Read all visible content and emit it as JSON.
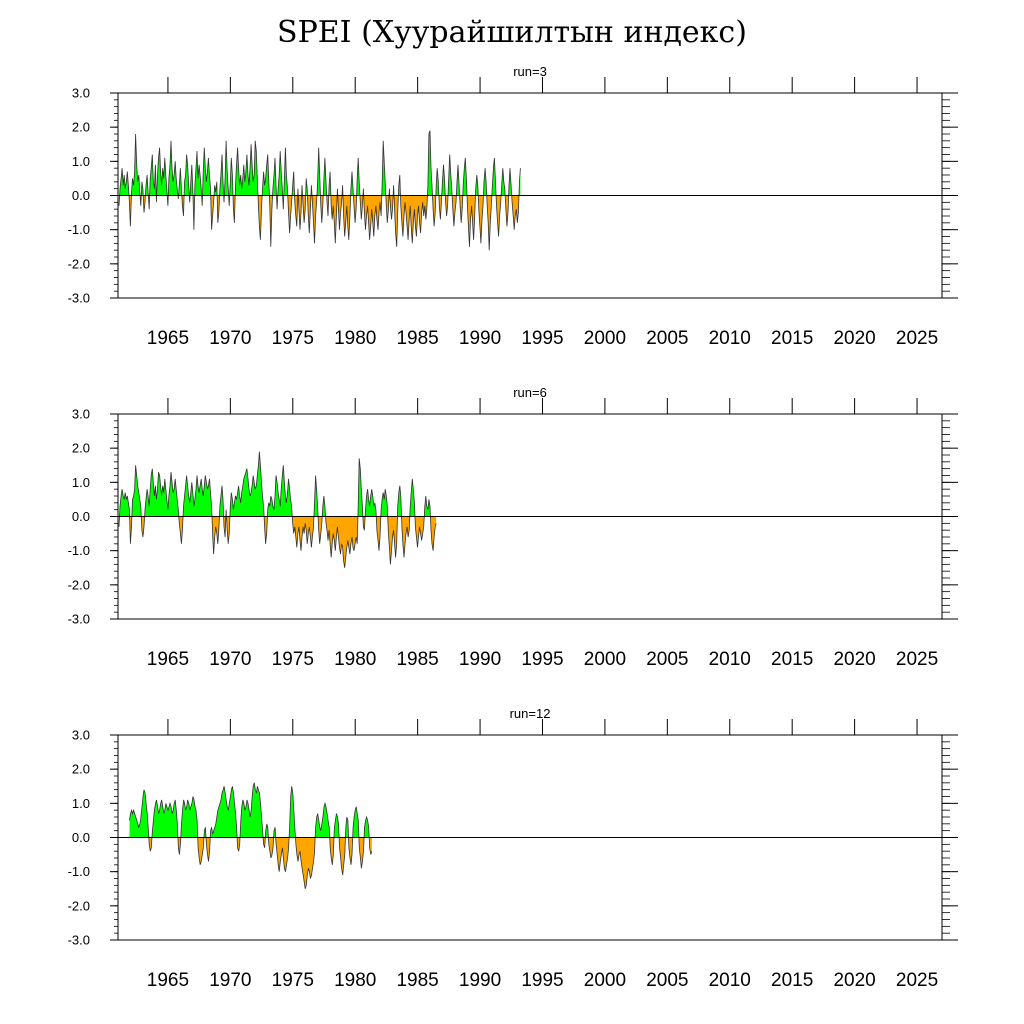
{
  "figure": {
    "title": "SPEI (Хуурайшилтын индекс)"
  },
  "colors": {
    "positive": "#00ff00",
    "negative": "#ffa500",
    "line": "#000000",
    "frame": "#000000"
  },
  "chart_data": [
    {
      "type": "area",
      "title": "run=3",
      "ylim": [
        -3.0,
        3.0
      ],
      "yticks": [
        "-3.0",
        "-2.0",
        "-1.0",
        "0.0",
        "1.0",
        "2.0",
        "3.0"
      ],
      "xlim": [
        1961.0,
        2027.0
      ],
      "xticks": [
        "1965",
        "1970",
        "1975",
        "1980",
        "1985",
        "1990",
        "1995",
        "2000",
        "2005",
        "2010",
        "2015",
        "2020",
        "2025"
      ],
      "start": 1961.08,
      "step": 0.0833,
      "values": [
        -0.3,
        0.2,
        0.5,
        0.8,
        0.3,
        0.6,
        0.2,
        0.4,
        0.7,
        0.3,
        -0.2,
        -0.9,
        0.1,
        0.5,
        0.3,
        0.7,
        1.8,
        0.9,
        0.4,
        0.6,
        0.1,
        -0.3,
        0.4,
        0.2,
        -0.5,
        -0.2,
        0.3,
        0.6,
        0.1,
        -0.4,
        0.5,
        0.8,
        1.2,
        0.4,
        0.2,
        0.9,
        -0.2,
        0.6,
        1.1,
        1.4,
        0.7,
        0.3,
        0.8,
        0.5,
        1.1,
        0.6,
        0.2,
        -0.3,
        0.5,
        0.9,
        1.6,
        0.8,
        0.4,
        0.6,
        1.0,
        0.5,
        0.2,
        -0.1,
        0.3,
        0.8,
        0.2,
        -0.3,
        -0.6,
        0.4,
        0.6,
        1.2,
        0.9,
        0.3,
        -0.2,
        0.4,
        0.9,
        0.2,
        -1.0,
        0.3,
        0.8,
        1.3,
        0.5,
        0.9,
        0.6,
        0.2,
        -0.3,
        0.7,
        1.4,
        0.8,
        0.4,
        0.7,
        1.1,
        0.6,
        0.2,
        -1.0,
        -0.6,
        -0.2,
        0.3,
        0.1,
        0.4,
        -0.8,
        -0.5,
        0.2,
        0.6,
        1.2,
        0.4,
        -0.2,
        0.5,
        1.6,
        0.7,
        0.2,
        -0.3,
        0.4,
        1.1,
        0.6,
        -0.4,
        -0.8,
        0.3,
        0.9,
        1.4,
        0.8,
        0.3,
        0.6,
        0.2,
        0.5,
        0.9,
        0.4,
        0.7,
        1.2,
        0.6,
        0.3,
        0.8,
        1.5,
        0.9,
        0.4,
        0.6,
        1.6,
        1.3,
        0.5,
        -0.3,
        -0.9,
        -1.3,
        -0.4,
        0.2,
        0.7,
        0.3,
        0.5,
        0.9,
        1.2,
        0.4,
        -0.3,
        -1.5,
        -0.4,
        0.2,
        0.6,
        1.1,
        0.3,
        -0.4,
        0.2,
        0.6,
        1.3,
        0.7,
        0.2,
        -0.4,
        0.5,
        1.4,
        0.6,
        0.2,
        -0.5,
        -1.1,
        -0.6,
        -0.2,
        0.3,
        0.7,
        -0.2,
        -0.6,
        -0.9,
        0.2,
        -0.4,
        -1.0,
        -0.5,
        0.3,
        -0.3,
        -0.8,
        -0.4,
        0.5,
        0.2,
        -0.6,
        -1.1,
        -0.4,
        0.3,
        -0.2,
        -0.8,
        -1.4,
        -0.6,
        -0.2,
        0.4,
        1.4,
        0.6,
        -0.3,
        -0.8,
        -0.3,
        0.5,
        1.1,
        0.4,
        -0.2,
        -0.6,
        0.3,
        0.7,
        -0.3,
        -0.7,
        -0.3,
        -0.8,
        -1.4,
        -0.6,
        0.2,
        -0.4,
        -1.0,
        -0.5,
        -0.2,
        0.3,
        -0.6,
        -1.2,
        -0.8,
        -0.3,
        -0.9,
        -1.3,
        -0.6,
        0.2,
        0.7,
        0.2,
        -0.3,
        -0.8,
        -0.4,
        0.5,
        1.1,
        0.4,
        -0.2,
        -0.7,
        -0.3,
        0.2,
        -0.5,
        -1.0,
        -0.6,
        -0.3,
        -0.8,
        -1.3,
        -0.9,
        -0.4,
        -0.8,
        -1.2,
        -0.6,
        -0.3,
        -0.7,
        -1.0,
        -0.5,
        -0.2,
        -0.6,
        0.3,
        1.6,
        1.0,
        0.4,
        -0.3,
        -0.8,
        -0.4,
        0.2,
        -0.3,
        -0.7,
        -0.4,
        0.3,
        -0.4,
        -1.1,
        -1.5,
        -0.5,
        0.3,
        0.6,
        -0.3,
        -0.8,
        -1.2,
        -0.6,
        -0.2,
        -0.5,
        -0.9,
        -1.3,
        -0.7,
        -0.3,
        -0.9,
        -1.4,
        -0.8,
        -0.4,
        -0.9,
        -1.2,
        -0.6,
        -0.3,
        -0.8,
        -1.1,
        -0.5,
        -0.2,
        -0.6,
        -0.3,
        -0.7,
        -0.4,
        0.3,
        1.8,
        1.9,
        0.8,
        0.3,
        -0.4,
        -0.9,
        -0.5,
        0.3,
        0.8,
        0.4,
        -0.3,
        -0.7,
        -0.2,
        0.4,
        0.9,
        0.5,
        -0.2,
        -0.6,
        -0.3,
        0.5,
        1.2,
        0.6,
        0.2,
        -0.4,
        -0.9,
        -0.5,
        -0.2,
        0.4,
        0.9,
        0.3,
        -0.3,
        -0.8,
        -0.4,
        0.3,
        0.8,
        1.1,
        0.5,
        -0.3,
        -0.9,
        -1.5,
        -0.7,
        -0.3,
        -0.8,
        -1.3,
        -0.6,
        0.2,
        0.6,
        0.3,
        -0.4,
        -0.9,
        -1.4,
        -0.7,
        -0.3,
        0.4,
        0.8,
        0.4,
        -0.3,
        -0.8,
        -1.6,
        -0.8,
        -0.3,
        0.3,
        0.8,
        1.1,
        0.4,
        -0.3,
        -0.8,
        -1.2,
        -0.6,
        -0.2,
        0.3,
        0.8,
        0.4,
        0.2,
        -0.4,
        -0.9,
        -0.5,
        0.3,
        0.8,
        0.3,
        -0.2,
        -0.6,
        -1.0,
        -0.6,
        -0.4,
        -0.8,
        -0.5,
        0.4,
        0.8
      ]
    },
    {
      "type": "area",
      "title": "run=6",
      "ylim": [
        -3.0,
        3.0
      ],
      "yticks": [
        "-3.0",
        "-2.0",
        "-1.0",
        "0.0",
        "1.0",
        "2.0",
        "3.0"
      ],
      "xlim": [
        1961.0,
        2027.0
      ],
      "xticks": [
        "1965",
        "1970",
        "1975",
        "1980",
        "1985",
        "1990",
        "1995",
        "2000",
        "2005",
        "2010",
        "2015",
        "2020",
        "2025"
      ],
      "start": 1961.08,
      "step": 0.0833,
      "values": [
        -0.3,
        0.3,
        0.6,
        0.8,
        0.6,
        0.5,
        0.7,
        0.5,
        0.6,
        0.4,
        0.2,
        -0.8,
        -0.3,
        0.5,
        0.6,
        0.8,
        1.5,
        1.2,
        0.9,
        0.7,
        0.5,
        0.3,
        -0.4,
        -0.6,
        -0.3,
        0.2,
        0.5,
        0.8,
        0.6,
        0.3,
        0.8,
        1.2,
        1.4,
        1.0,
        0.6,
        0.9,
        0.5,
        0.8,
        1.3,
        1.2,
        0.9,
        0.6,
        0.9,
        0.7,
        1.1,
        0.8,
        0.5,
        0.2,
        0.6,
        0.9,
        1.3,
        1.0,
        0.7,
        0.8,
        1.1,
        0.8,
        0.5,
        0.2,
        -0.2,
        -0.5,
        -0.8,
        -0.4,
        0.3,
        0.6,
        0.9,
        1.2,
        0.9,
        0.6,
        0.4,
        0.7,
        1.0,
        0.7,
        0.3,
        0.5,
        0.8,
        1.2,
        0.9,
        0.7,
        0.9,
        1.1,
        0.8,
        0.6,
        0.9,
        1.2,
        1.0,
        0.8,
        0.9,
        1.1,
        0.7,
        0.3,
        -0.5,
        -1.1,
        -0.6,
        -0.3,
        -0.5,
        -0.8,
        -0.4,
        0.3,
        0.6,
        0.9,
        0.5,
        -0.3,
        -0.6,
        0.2,
        -0.4,
        -0.8,
        -0.5,
        0.3,
        0.7,
        0.5,
        0.2,
        0.4,
        0.6,
        0.5,
        0.7,
        0.9,
        0.6,
        0.4,
        0.7,
        0.9,
        1.1,
        1.2,
        1.3,
        1.4,
        1.1,
        0.8,
        0.6,
        0.7,
        0.9,
        1.2,
        1.0,
        0.8,
        0.9,
        1.2,
        1.5,
        1.9,
        1.5,
        1.0,
        0.6,
        0.3,
        -0.3,
        -0.8,
        -0.5,
        0.2,
        0.4,
        0.3,
        0.6,
        0.5,
        0.3,
        0.2,
        0.6,
        1.2,
        1.0,
        0.7,
        0.5,
        0.3,
        0.8,
        1.2,
        1.5,
        1.0,
        0.6,
        0.4,
        0.7,
        1.1,
        0.8,
        0.5,
        0.3,
        -0.2,
        -0.5,
        -0.3,
        -0.6,
        -0.9,
        -0.5,
        -0.3,
        -0.7,
        -1.0,
        -0.6,
        -0.3,
        -0.5,
        -0.2,
        -0.4,
        -0.8,
        -0.5,
        -0.3,
        -0.6,
        -0.9,
        -0.6,
        -0.3,
        0.4,
        1.2,
        0.8,
        0.3,
        -0.4,
        -0.8,
        -0.5,
        -0.2,
        0.3,
        0.6,
        0.3,
        -0.2,
        -0.4,
        -0.7,
        -0.4,
        -0.8,
        -1.2,
        -0.8,
        -0.5,
        -0.7,
        -1.0,
        -0.6,
        -0.3,
        -0.6,
        -0.9,
        -1.1,
        -0.8,
        -0.9,
        -1.3,
        -1.5,
        -1.2,
        -0.9,
        -0.7,
        -0.9,
        -1.1,
        -0.8,
        -0.6,
        -0.9,
        -1.0,
        -0.8,
        -0.6,
        -0.8,
        0.3,
        1.7,
        1.4,
        0.8,
        0.3,
        -0.3,
        -0.4,
        0.2,
        0.6,
        0.8,
        0.5,
        0.3,
        0.6,
        0.8,
        0.6,
        0.3,
        0.4,
        0.2,
        -0.4,
        -0.7,
        -1.0,
        -0.6,
        0.2,
        0.5,
        0.7,
        0.5,
        0.8,
        0.6,
        0.3,
        -0.5,
        -0.9,
        -1.4,
        -1.0,
        -0.6,
        -0.4,
        -0.8,
        -1.2,
        -0.8,
        0.3,
        0.7,
        0.9,
        0.6,
        -0.3,
        -0.8,
        -1.2,
        -0.8,
        -0.5,
        -0.3,
        -0.6,
        -0.4,
        0.3,
        0.7,
        1.1,
        0.8,
        0.4,
        -0.3,
        -0.6,
        -0.9,
        -0.6,
        -0.3,
        -0.5,
        -0.7,
        -0.5,
        -0.3,
        0.3,
        0.6,
        0.3,
        0.2,
        0.5,
        0.3,
        -0.4,
        -0.8,
        -1.0,
        -0.6,
        -0.3,
        -0.2
      ]
    },
    {
      "type": "area",
      "title": "run=12",
      "ylim": [
        -3.0,
        3.0
      ],
      "yticks": [
        "-3.0",
        "-2.0",
        "-1.0",
        "0.0",
        "1.0",
        "2.0",
        "3.0"
      ],
      "xlim": [
        1961.0,
        2027.0
      ],
      "xticks": [
        "1965",
        "1970",
        "1975",
        "1980",
        "1985",
        "1990",
        "1995",
        "2000",
        "2005",
        "2010",
        "2015",
        "2020",
        "2025"
      ],
      "start": 1961.92,
      "step": 0.0833,
      "values": [
        0.5,
        0.7,
        0.8,
        0.7,
        0.8,
        0.7,
        0.6,
        0.5,
        0.4,
        0.3,
        0.4,
        0.6,
        0.9,
        1.2,
        1.4,
        1.3,
        1.0,
        0.7,
        0.3,
        -0.2,
        -0.4,
        -0.3,
        0.2,
        0.5,
        0.8,
        1.0,
        1.1,
        0.9,
        0.7,
        0.8,
        1.0,
        1.1,
        0.9,
        0.7,
        0.8,
        1.0,
        0.9,
        0.8,
        0.9,
        1.0,
        0.9,
        0.7,
        0.8,
        1.0,
        1.1,
        0.8,
        0.4,
        -0.3,
        -0.5,
        -0.2,
        0.4,
        0.8,
        1.1,
        1.0,
        0.8,
        0.9,
        1.1,
        1.0,
        0.8,
        0.9,
        1.0,
        1.2,
        1.1,
        0.9,
        0.8,
        0.5,
        -0.3,
        -0.6,
        -0.8,
        -0.7,
        -0.5,
        -0.3,
        0.2,
        0.3,
        -0.2,
        -0.5,
        -0.7,
        -0.4,
        0.2,
        0.3,
        0.1,
        0.2,
        0.3,
        0.4,
        0.6,
        0.8,
        0.9,
        1.0,
        1.1,
        1.3,
        1.4,
        1.5,
        1.3,
        1.1,
        0.9,
        0.8,
        1.0,
        1.2,
        1.4,
        1.5,
        1.3,
        1.0,
        0.7,
        0.3,
        -0.3,
        -0.4,
        -0.2,
        0.5,
        0.9,
        1.1,
        1.0,
        0.8,
        0.9,
        1.1,
        1.0,
        0.8,
        0.6,
        0.8,
        1.2,
        1.5,
        1.6,
        1.4,
        1.3,
        1.5,
        1.4,
        1.3,
        1.0,
        0.6,
        0.2,
        -0.2,
        -0.3,
        0.2,
        0.4,
        0.3,
        -0.2,
        -0.4,
        -0.6,
        -0.5,
        -0.3,
        0.2,
        0.3,
        -0.2,
        -0.5,
        -0.8,
        -1.0,
        -0.7,
        -0.5,
        -0.3,
        -0.6,
        -0.9,
        -1.0,
        -0.8,
        -0.6,
        -0.3,
        0.3,
        1.2,
        1.5,
        1.3,
        0.8,
        0.3,
        -0.2,
        -0.5,
        -0.7,
        -0.5,
        -0.4,
        -0.7,
        -0.9,
        -1.1,
        -1.3,
        -1.5,
        -1.4,
        -1.1,
        -0.9,
        -1.0,
        -1.2,
        -1.1,
        -0.9,
        -0.7,
        -0.4,
        0.3,
        0.6,
        0.7,
        0.5,
        0.3,
        0.2,
        0.4,
        0.6,
        0.9,
        1.0,
        0.9,
        0.7,
        0.5,
        0.3,
        -0.3,
        -0.6,
        -0.8,
        -0.5,
        0.3,
        0.5,
        0.7,
        0.6,
        0.4,
        -0.3,
        -0.6,
        -0.9,
        -1.1,
        -0.8,
        -0.5,
        0.3,
        0.6,
        0.5,
        -0.3,
        -0.6,
        -0.8,
        -0.5,
        0.3,
        0.6,
        0.8,
        0.9,
        0.7,
        0.5,
        -0.3,
        -0.6,
        -0.9,
        -0.7,
        -0.4,
        0.3,
        0.5,
        0.6,
        0.5,
        0.3,
        -0.3,
        -0.5,
        -0.4
      ]
    }
  ]
}
